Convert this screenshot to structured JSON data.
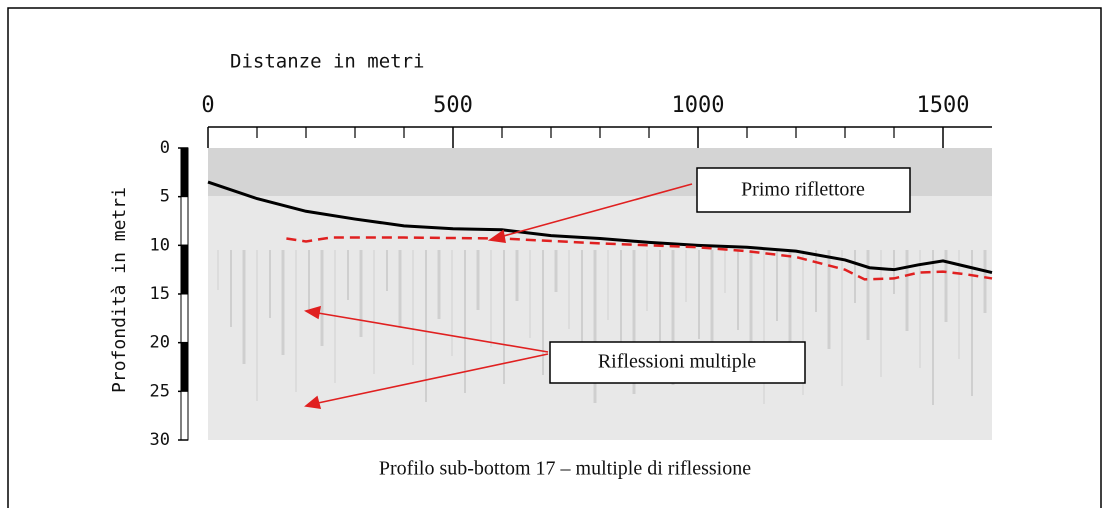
{
  "chart_data": {
    "type": "line",
    "xlabel": "Distanze in metri",
    "ylabel": "Profondità in metri",
    "caption": "Profilo sub-bottom 17 – multiple di riflessione",
    "annotations": [
      "Primo riflettore",
      "Riflessioni multiple"
    ],
    "xlim": [
      0,
      1600
    ],
    "xticks": [
      0,
      500,
      1000,
      1500
    ],
    "xminorticks": [
      100,
      200,
      300,
      400,
      600,
      700,
      800,
      900,
      1100,
      1200,
      1300,
      1400
    ],
    "ylim": [
      0,
      30
    ],
    "yticks": [
      0,
      5,
      10,
      15,
      20,
      25,
      30
    ],
    "yinverted": true,
    "series": [
      {
        "color": "#000000",
        "dashed": false,
        "x": [
          0,
          100,
          200,
          300,
          400,
          500,
          600,
          700,
          800,
          900,
          1000,
          1100,
          1200,
          1300,
          1350,
          1400,
          1450,
          1500,
          1550,
          1600
        ],
        "values": [
          3.5,
          5.2,
          6.5,
          7.3,
          8,
          8.3,
          8.4,
          9,
          9.3,
          9.7,
          10,
          10.2,
          10.6,
          11.5,
          12.3,
          12.5,
          12,
          11.6,
          12.2,
          12.8
        ]
      },
      {
        "color": "#e02020",
        "dashed": true,
        "x": [
          160,
          200,
          250,
          400,
          600,
          800,
          1000,
          1100,
          1200,
          1300,
          1340,
          1400,
          1450,
          1500,
          1550,
          1600
        ],
        "values": [
          9.3,
          9.6,
          9.2,
          9.2,
          9.3,
          9.8,
          10.2,
          10.6,
          11.2,
          12.5,
          13.5,
          13.4,
          12.8,
          12.7,
          13,
          13.4
        ]
      }
    ]
  }
}
